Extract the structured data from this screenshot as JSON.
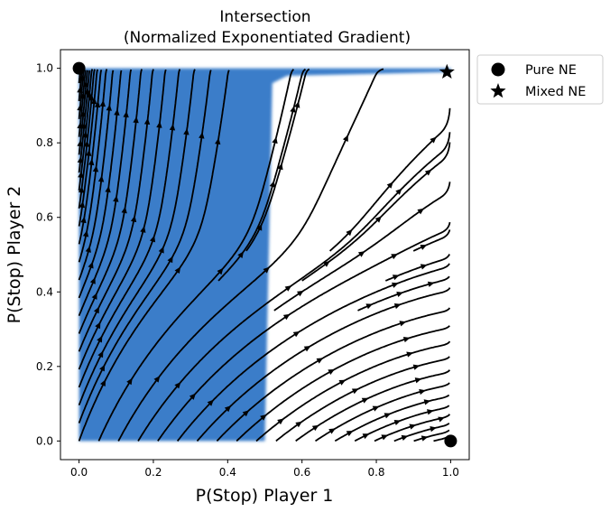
{
  "chart_data": {
    "type": "streamplot",
    "title_line1": "Intersection",
    "title_line2": "(Normalized Exponentiated Gradient)",
    "xlabel": "P(Stop) Player 1",
    "ylabel": "P(Stop) Player 2",
    "xlim": [
      -0.05,
      1.05
    ],
    "ylim": [
      -0.05,
      1.05
    ],
    "x_ticks": [
      0.0,
      0.2,
      0.4,
      0.6,
      0.8,
      1.0
    ],
    "y_ticks": [
      0.0,
      0.2,
      0.4,
      0.6,
      0.8,
      1.0
    ],
    "x_tick_labels": [
      "0.0",
      "0.2",
      "0.4",
      "0.6",
      "0.8",
      "1.0"
    ],
    "y_tick_labels": [
      "0.0",
      "0.2",
      "0.4",
      "0.6",
      "0.8",
      "1.0"
    ],
    "grid": false,
    "legend_position": "outside-top-right",
    "region_color": "#3a7dc9",
    "stream_color": "#000000",
    "shaded_region": {
      "polygon": [
        [
          0.0,
          0.0
        ],
        [
          0.5,
          0.0
        ],
        [
          0.52,
          0.96
        ],
        [
          0.56,
          0.98
        ],
        [
          1.0,
          0.99
        ],
        [
          1.0,
          1.0
        ],
        [
          0.0,
          1.0
        ]
      ]
    },
    "pure_ne": [
      [
        0.0,
        1.0
      ],
      [
        1.0,
        0.0
      ]
    ],
    "mixed_ne": [
      [
        0.99,
        0.99
      ]
    ],
    "legend": [
      {
        "label": "Pure NE",
        "marker": "circle"
      },
      {
        "label": "Mixed NE",
        "marker": "star"
      }
    ]
  }
}
